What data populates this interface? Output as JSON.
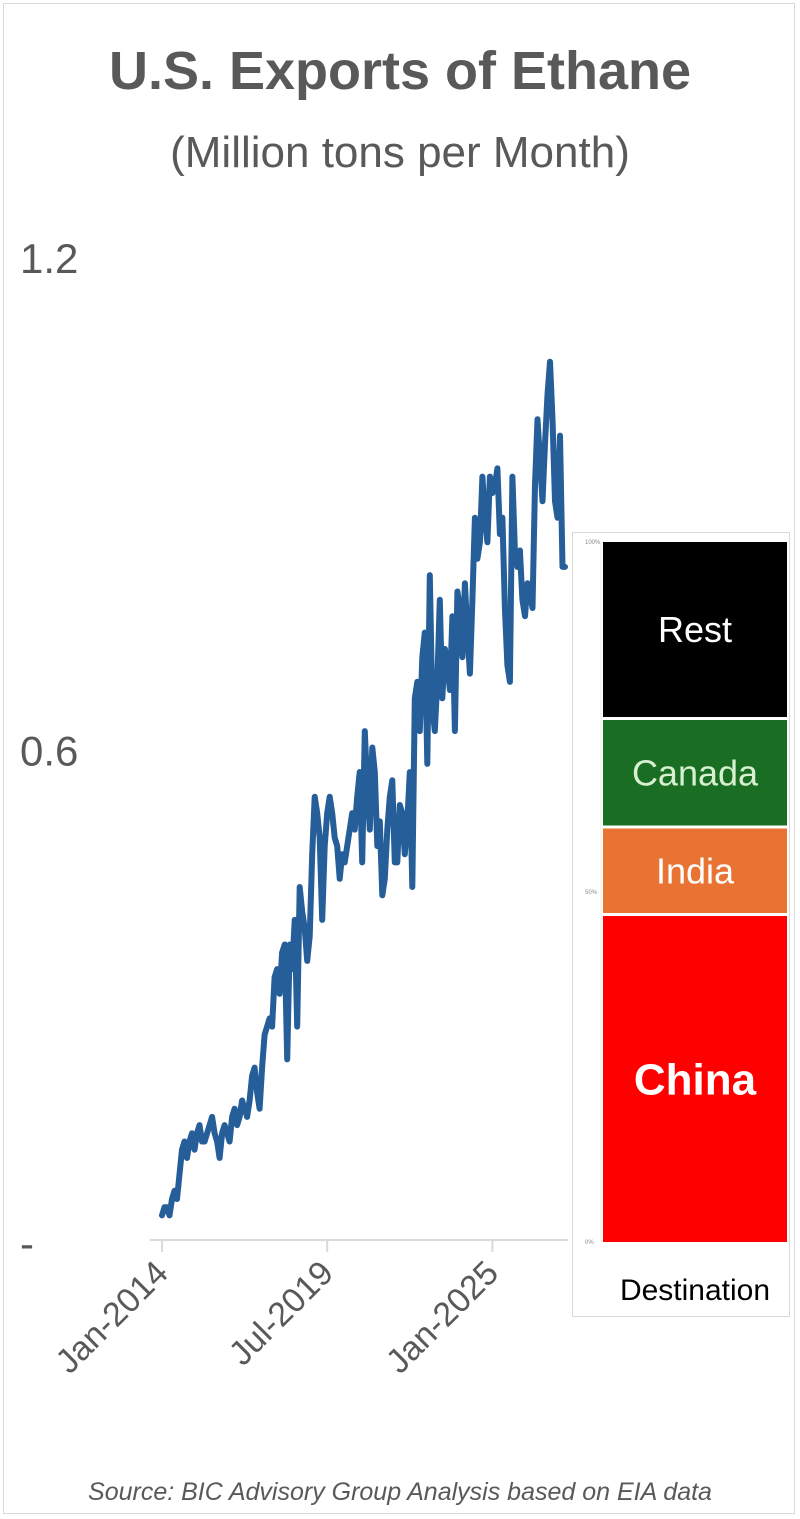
{
  "title": "U.S. Exports of Ethane",
  "subtitle": "(Million tons per Month)",
  "source": "Source: BIC Advisory Group Analysis based on EIA data",
  "colors": {
    "line": "#255e99",
    "axis": "#d9d9d9",
    "text": "#595959"
  },
  "chart_data": [
    {
      "type": "line",
      "title": "U.S. Exports of Ethane",
      "subtitle": "(Million tons per Month)",
      "xlabel": "",
      "ylabel": "",
      "x_start": "Jan-2014",
      "x_end": "Jun-2025",
      "xticks": [
        "Jan-2014",
        "Jul-2019",
        "Jan-2025"
      ],
      "yticks": [
        {
          "value": 0,
          "label": "-"
        },
        {
          "value": 0.6,
          "label": "0.6"
        },
        {
          "value": 1.2,
          "label": "1.2"
        }
      ],
      "ylim": [
        0,
        1.2
      ],
      "grid": false,
      "series": [
        {
          "values": [
            0.03,
            0.04,
            0.04,
            0.03,
            0.05,
            0.06,
            0.05,
            0.08,
            0.11,
            0.12,
            0.1,
            0.12,
            0.13,
            0.11,
            0.13,
            0.14,
            0.12,
            0.12,
            0.13,
            0.14,
            0.15,
            0.13,
            0.12,
            0.1,
            0.13,
            0.14,
            0.13,
            0.12,
            0.15,
            0.16,
            0.14,
            0.15,
            0.17,
            0.16,
            0.15,
            0.17,
            0.2,
            0.21,
            0.18,
            0.16,
            0.21,
            0.25,
            0.26,
            0.27,
            0.26,
            0.32,
            0.33,
            0.3,
            0.35,
            0.36,
            0.22,
            0.36,
            0.33,
            0.39,
            0.26,
            0.43,
            0.4,
            0.38,
            0.34,
            0.37,
            0.47,
            0.54,
            0.52,
            0.49,
            0.39,
            0.48,
            0.52,
            0.54,
            0.52,
            0.49,
            0.48,
            0.44,
            0.47,
            0.46,
            0.48,
            0.5,
            0.52,
            0.5,
            0.54,
            0.57,
            0.46,
            0.62,
            0.55,
            0.5,
            0.6,
            0.57,
            0.48,
            0.51,
            0.42,
            0.44,
            0.5,
            0.54,
            0.56,
            0.46,
            0.46,
            0.53,
            0.52,
            0.47,
            0.51,
            0.57,
            0.43,
            0.66,
            0.68,
            0.62,
            0.71,
            0.74,
            0.58,
            0.81,
            0.65,
            0.62,
            0.68,
            0.78,
            0.66,
            0.72,
            0.7,
            0.67,
            0.76,
            0.62,
            0.79,
            0.77,
            0.71,
            0.8,
            0.74,
            0.69,
            0.78,
            0.88,
            0.83,
            0.85,
            0.93,
            0.88,
            0.85,
            0.93,
            0.91,
            0.92,
            0.94,
            0.86,
            0.88,
            0.77,
            0.7,
            0.68,
            0.93,
            0.84,
            0.82,
            0.84,
            0.78,
            0.76,
            0.8,
            0.79,
            0.77,
            0.92,
            1.0,
            0.95,
            0.9,
            0.97,
            1.03,
            1.07,
            1.0,
            0.9,
            0.88,
            0.98,
            0.82,
            0.82
          ]
        }
      ]
    },
    {
      "type": "bar",
      "stacked": true,
      "categories": [
        "Destination"
      ],
      "xlabel": "Destination",
      "yticks": [
        "100%",
        "50%",
        "0%"
      ],
      "ylim": [
        0,
        100
      ],
      "series": [
        {
          "name": "China",
          "value": 47,
          "color": "#ff0000",
          "label_color": "#ffffff",
          "bold": true
        },
        {
          "name": "India",
          "value": 12.5,
          "color": "#e87333",
          "label_color": "#ffffff",
          "bold": false
        },
        {
          "name": "Canada",
          "value": 15.5,
          "color": "#1a6e24",
          "label_color": "#d7f0cf",
          "bold": false
        },
        {
          "name": "Rest",
          "value": 25,
          "color": "#000000",
          "label_color": "#ffffff",
          "bold": false
        }
      ]
    }
  ]
}
